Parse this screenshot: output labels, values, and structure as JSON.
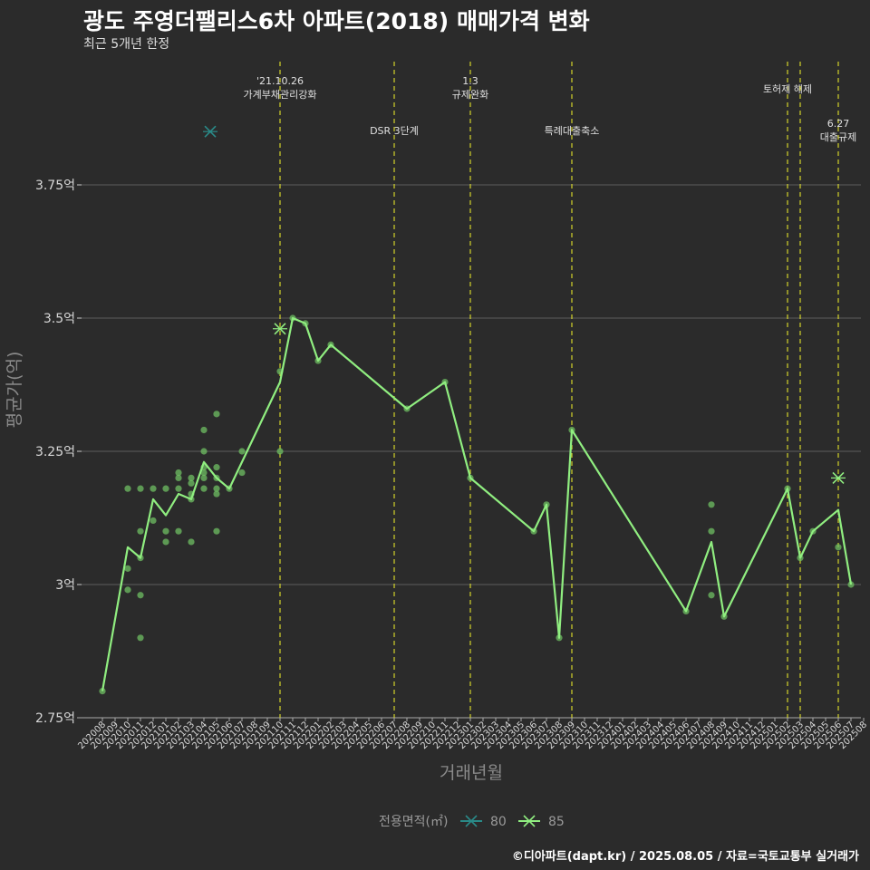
{
  "title": "광도 주영더팰리스6차 아파트(2018) 매매가격 변화",
  "subtitle": "최근 5개년 한정",
  "caption": "©디아파트(dapt.kr) / 2025.08.05 / 자료=국토교통부 실거래가",
  "chart_data": {
    "type": "line",
    "xlabel": "거래년월",
    "ylabel": "평균가(억)",
    "ylim": [
      2.75,
      4.0
    ],
    "y_ticks": [
      {
        "value": 2.75,
        "label": "2.75억"
      },
      {
        "value": 3.0,
        "label": "3억"
      },
      {
        "value": 3.25,
        "label": "3.25억"
      },
      {
        "value": 3.5,
        "label": "3.5억"
      },
      {
        "value": 3.75,
        "label": "3.75억"
      }
    ],
    "categories": [
      "202008",
      "202009",
      "202010",
      "202011",
      "202012",
      "202101",
      "202102",
      "202103",
      "202104",
      "202105",
      "202106",
      "202107",
      "202108",
      "202109",
      "202110",
      "202111",
      "202112",
      "202201",
      "202202",
      "202203",
      "202204",
      "202205",
      "202206",
      "202207",
      "202208",
      "202209",
      "202210",
      "202211",
      "202212",
      "202301",
      "202302",
      "202303",
      "202304",
      "202305",
      "202306",
      "202307",
      "202308",
      "202309",
      "202310",
      "202311",
      "202312",
      "202401",
      "202402",
      "202403",
      "202404",
      "202405",
      "202406",
      "202407",
      "202408",
      "202409",
      "202410",
      "202411",
      "202412",
      "202501",
      "202502",
      "202503",
      "202504",
      "202505",
      "202506",
      "202507",
      "202508"
    ],
    "x_tick_labels": [
      "202008",
      "202009",
      "202010",
      "202011",
      "202012",
      "202101",
      "202102",
      "202103",
      "202104",
      "202105",
      "202106",
      "202107",
      "202108",
      "202109",
      "202110",
      "202111",
      "202112",
      "202201",
      "202202",
      "202203",
      "202204",
      "202205",
      "202206",
      "202207",
      "202208",
      "202209",
      "202210",
      "202211",
      "202212",
      "202301",
      "202302",
      "202303",
      "202304",
      "202305",
      "202306",
      "202307",
      "202308",
      "202309",
      "202310",
      "202311",
      "202312",
      "202401",
      "202402",
      "202403",
      "202404",
      "202405",
      "202406",
      "202407",
      "202408",
      "202409",
      "202410",
      "202411",
      "202412",
      "202501",
      "202502",
      "202503",
      "202504",
      "202505",
      "202506",
      "202507",
      "202508"
    ],
    "series": [
      {
        "name": "85",
        "color": "#90ee80",
        "points": [
          [
            "202008",
            2.8
          ],
          [
            "202010",
            3.07
          ],
          [
            "202011",
            3.05
          ],
          [
            "202012",
            3.16
          ],
          [
            "202101",
            3.13
          ],
          [
            "202102",
            3.17
          ],
          [
            "202103",
            3.16
          ],
          [
            "202104",
            3.23
          ],
          [
            "202105",
            3.2
          ],
          [
            "202106",
            3.18
          ],
          [
            "202110",
            3.38
          ],
          [
            "202111",
            3.5
          ],
          [
            "202112",
            3.49
          ],
          [
            "202201",
            3.42
          ],
          [
            "202202",
            3.45
          ],
          [
            "202208",
            3.33
          ],
          [
            "202211",
            3.38
          ],
          [
            "202301",
            3.2
          ],
          [
            "202306",
            3.1
          ],
          [
            "202307",
            3.15
          ],
          [
            "202308",
            2.9
          ],
          [
            "202309",
            3.29
          ],
          [
            "202406",
            2.95
          ],
          [
            "202408",
            3.08
          ],
          [
            "202409",
            2.94
          ],
          [
            "202502",
            3.18
          ],
          [
            "202503",
            3.05
          ],
          [
            "202504",
            3.1
          ],
          [
            "202506",
            3.14
          ],
          [
            "202507",
            3.0
          ]
        ]
      },
      {
        "name": "80",
        "color": "#2a8a88",
        "points": []
      }
    ],
    "scatter_points": [
      [
        "202008",
        2.8
      ],
      [
        "202010",
        3.18
      ],
      [
        "202010",
        3.03
      ],
      [
        "202010",
        2.99
      ],
      [
        "202011",
        3.18
      ],
      [
        "202011",
        3.1
      ],
      [
        "202011",
        3.05
      ],
      [
        "202011",
        2.98
      ],
      [
        "202011",
        2.9
      ],
      [
        "202012",
        3.18
      ],
      [
        "202012",
        3.12
      ],
      [
        "202101",
        3.18
      ],
      [
        "202101",
        3.1
      ],
      [
        "202101",
        3.08
      ],
      [
        "202102",
        3.21
      ],
      [
        "202102",
        3.2
      ],
      [
        "202102",
        3.18
      ],
      [
        "202102",
        3.1
      ],
      [
        "202103",
        3.2
      ],
      [
        "202103",
        3.19
      ],
      [
        "202103",
        3.17
      ],
      [
        "202103",
        3.16
      ],
      [
        "202103",
        3.08
      ],
      [
        "202104",
        3.29
      ],
      [
        "202104",
        3.25
      ],
      [
        "202104",
        3.22
      ],
      [
        "202104",
        3.21
      ],
      [
        "202104",
        3.2
      ],
      [
        "202104",
        3.18
      ],
      [
        "202105",
        3.32
      ],
      [
        "202105",
        3.22
      ],
      [
        "202105",
        3.2
      ],
      [
        "202105",
        3.18
      ],
      [
        "202105",
        3.17
      ],
      [
        "202105",
        3.1
      ],
      [
        "202106",
        3.18
      ],
      [
        "202107",
        3.25
      ],
      [
        "202107",
        3.21
      ],
      [
        "202110",
        3.4
      ],
      [
        "202110",
        3.25
      ],
      [
        "202111",
        3.5
      ],
      [
        "202112",
        3.49
      ],
      [
        "202201",
        3.42
      ],
      [
        "202202",
        3.45
      ],
      [
        "202208",
        3.33
      ],
      [
        "202211",
        3.38
      ],
      [
        "202301",
        3.2
      ],
      [
        "202306",
        3.1
      ],
      [
        "202307",
        3.15
      ],
      [
        "202308",
        2.9
      ],
      [
        "202309",
        3.29
      ],
      [
        "202406",
        2.95
      ],
      [
        "202408",
        3.15
      ],
      [
        "202408",
        3.1
      ],
      [
        "202408",
        2.98
      ],
      [
        "202409",
        2.94
      ],
      [
        "202502",
        3.18
      ],
      [
        "202503",
        3.05
      ],
      [
        "202504",
        3.1
      ],
      [
        "202506",
        3.07
      ],
      [
        "202507",
        3.0
      ]
    ],
    "cross_markers": [
      {
        "series": "85",
        "x": "202110",
        "y": 3.48
      },
      {
        "series": "80",
        "x": "202104.5",
        "y": 3.85
      },
      {
        "series": "85",
        "x": "202506",
        "y": 3.2
      }
    ],
    "events": [
      {
        "x": "202110",
        "lines": [
          "'21.10.26",
          "가계부채관리강화"
        ]
      },
      {
        "x": "202207",
        "lines": [
          "DSR 3단계"
        ]
      },
      {
        "x": "202301",
        "lines": [
          "1.3",
          "규제완화"
        ]
      },
      {
        "x": "202309",
        "lines": [
          "특례대출축소"
        ]
      },
      {
        "x": "202502",
        "lines": [
          "토허제 해제"
        ]
      },
      {
        "x": "202503",
        "lines": []
      },
      {
        "x": "202506",
        "lines": [
          "6.27",
          "대출규제"
        ]
      }
    ],
    "legend": {
      "title": "전용면적(㎡)",
      "placement": "bottom",
      "items": [
        "80",
        "85"
      ]
    },
    "grid": true
  }
}
